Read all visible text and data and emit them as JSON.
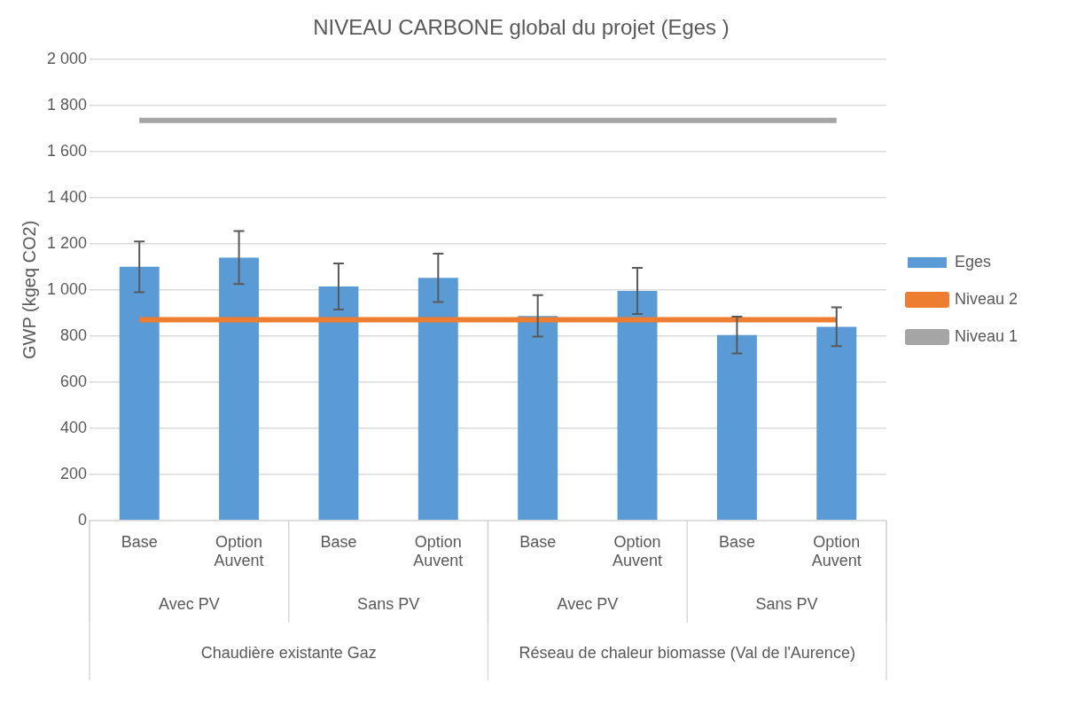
{
  "chart_data": {
    "type": "bar",
    "title": "NIVEAU CARBONE global du projet (Eges )",
    "ylabel": "GWP (kgeq CO2)",
    "categories": [
      "Base",
      "Option Auvent",
      "Base",
      "Option Auvent",
      "Base",
      "Option Auvent",
      "Base",
      "Option Auvent"
    ],
    "series": [
      {
        "name": "Eges",
        "color": "#5b9bd5",
        "values": [
          1100,
          1140,
          1015,
          1052,
          887,
          995,
          804,
          840
        ],
        "errors": [
          110,
          115,
          100,
          105,
          90,
          100,
          80,
          84
        ]
      },
      {
        "name": "Niveau 2",
        "type": "line",
        "color": "#ed7d31",
        "values": [
          870,
          870,
          870,
          870,
          870,
          870,
          870,
          870
        ]
      },
      {
        "name": "Niveau 1",
        "type": "line",
        "color": "#a5a5a5",
        "values": [
          1735,
          1735,
          1735,
          1735,
          1735,
          1735,
          1735,
          1735
        ]
      }
    ],
    "ylim": [
      0,
      2000
    ],
    "yticks": [
      0,
      200,
      400,
      600,
      800,
      {
        "value": 1000,
        "label": "1 000"
      },
      {
        "value": 1200,
        "label": "1 200"
      },
      {
        "value": 1400,
        "label": "1 400"
      },
      {
        "value": 1600,
        "label": "1 600"
      },
      {
        "value": 1800,
        "label": "1 800"
      },
      {
        "value": 2000,
        "label": "2 000"
      }
    ],
    "grid": "y",
    "legend": "right",
    "marker": "none",
    "annotations": [
      "Avec PV",
      "Sans PV",
      "Avec PV",
      "Sans PV",
      "Chaudière existante Gaz",
      "Réseau de chaleur biomasse (Val de l'Aurence)"
    ]
  }
}
